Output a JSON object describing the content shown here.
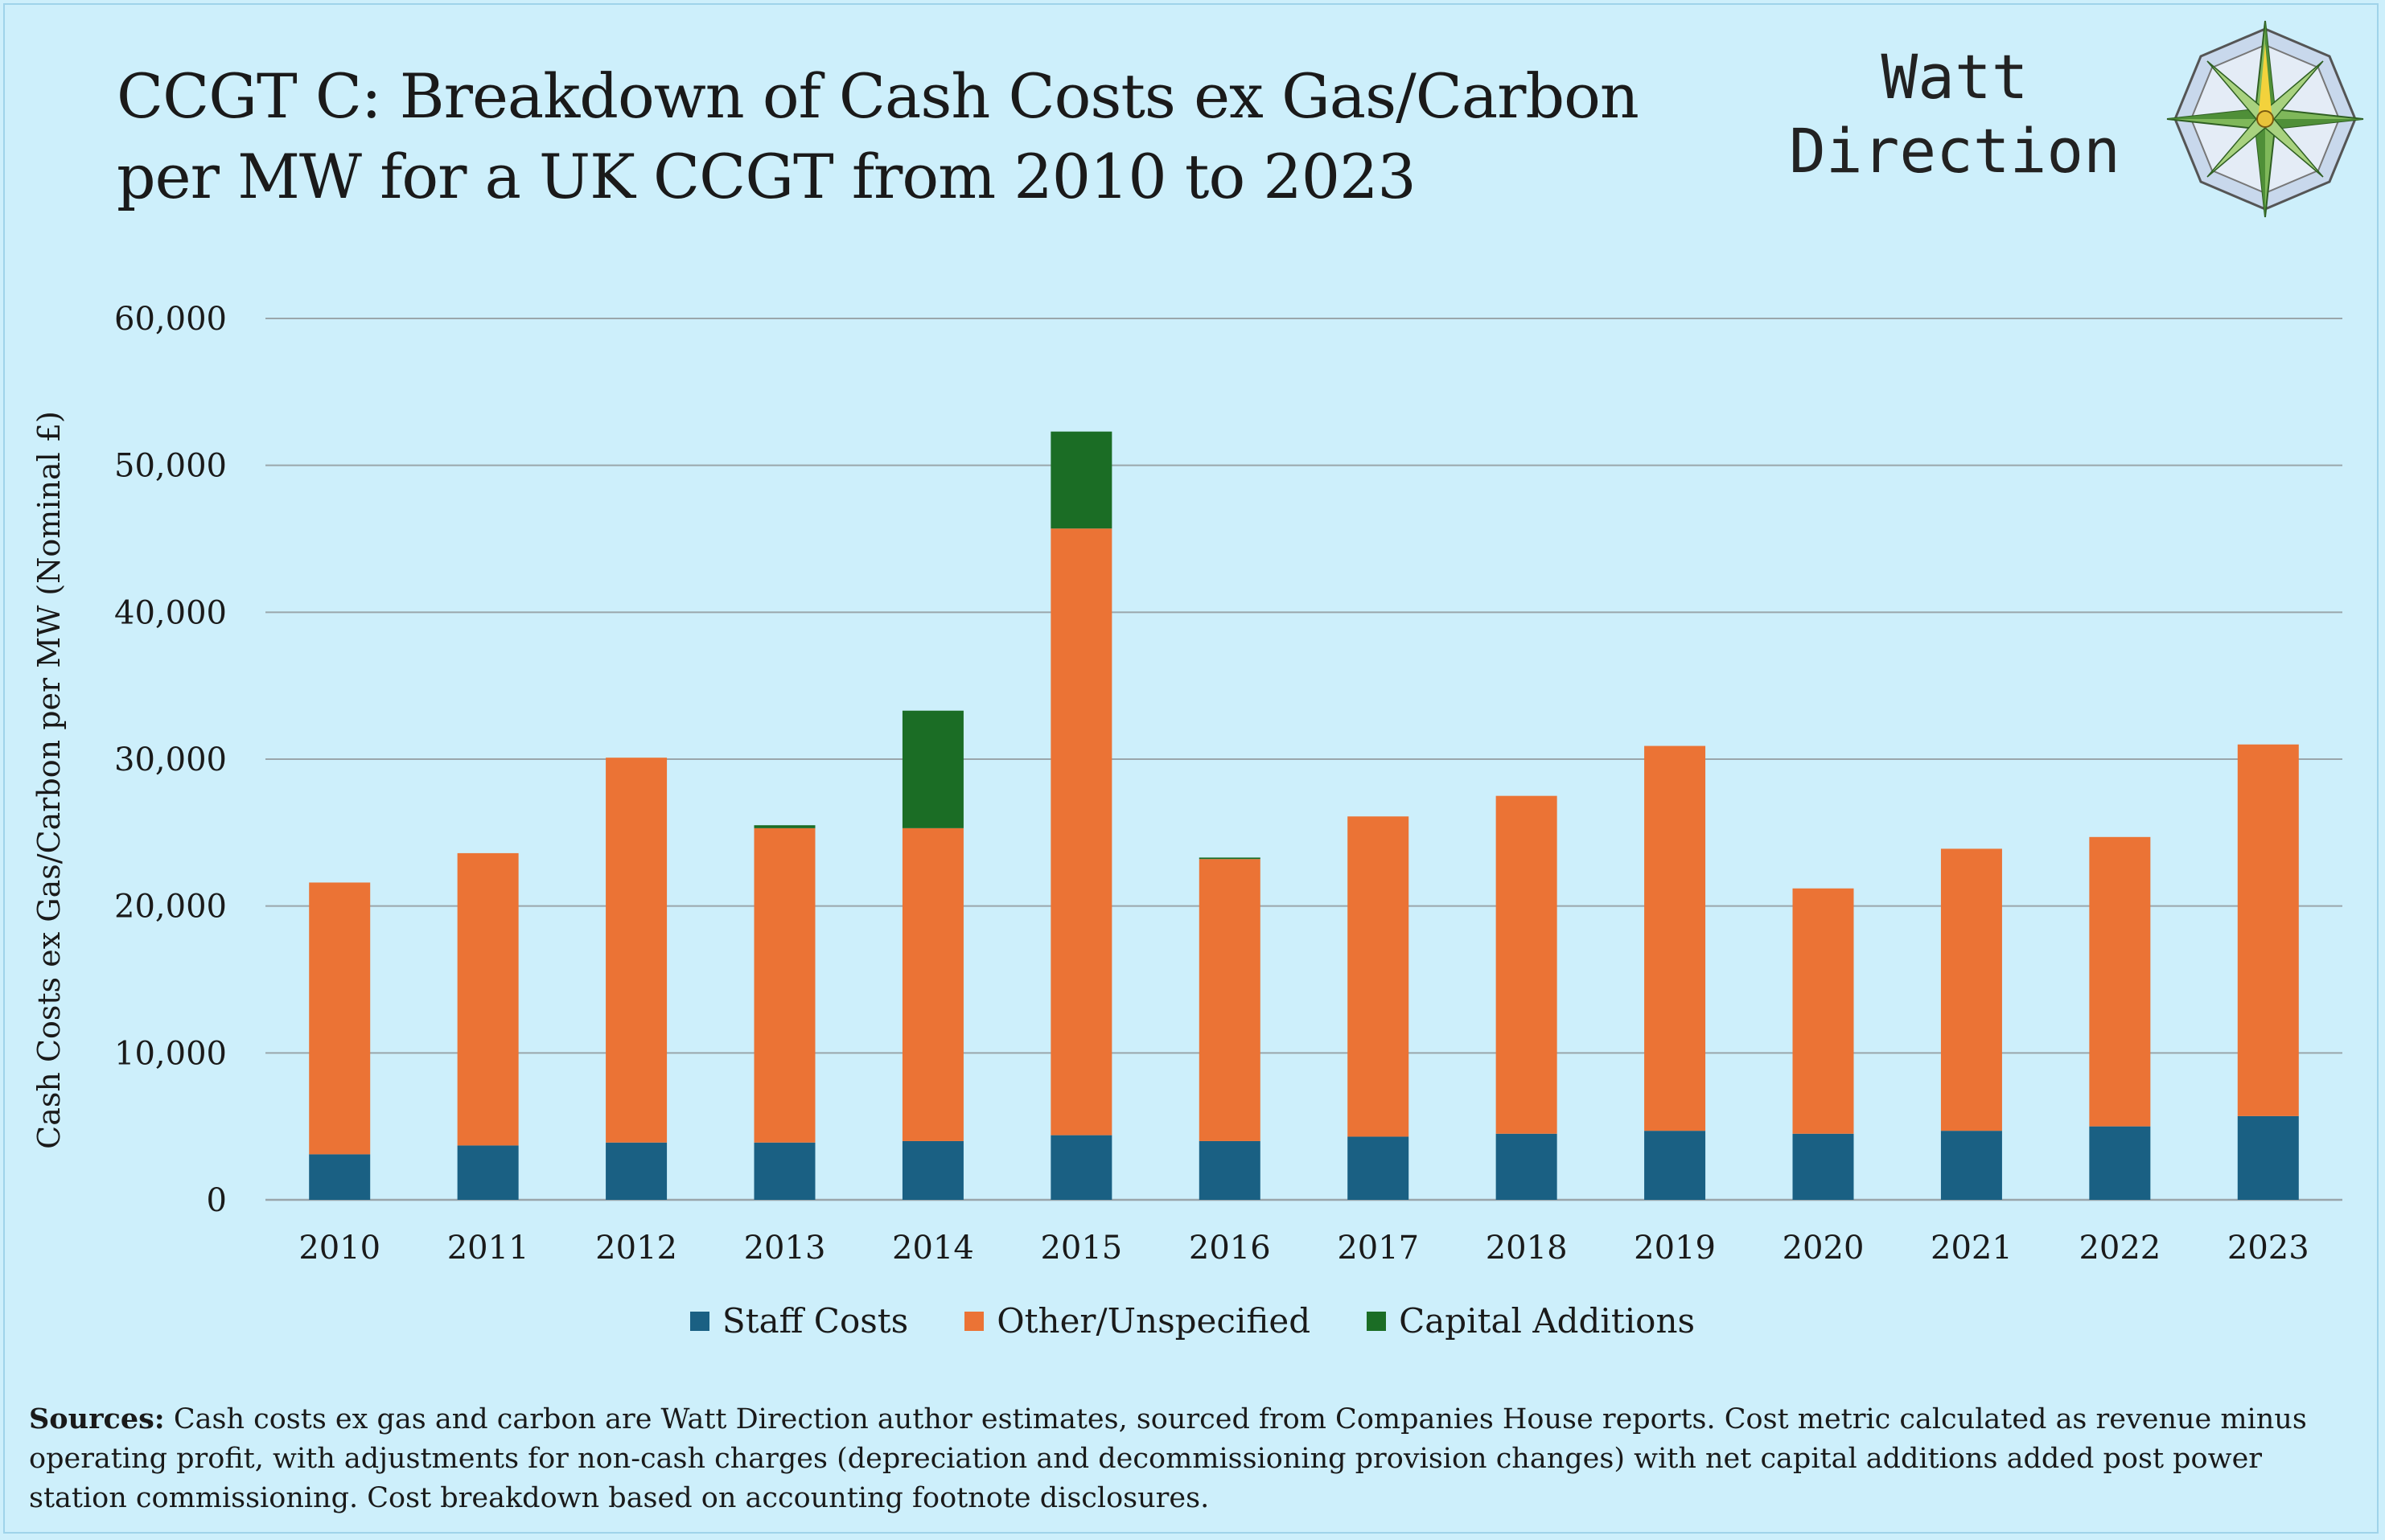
{
  "header": {
    "title_line1": "CCGT C: Breakdown of Cash Costs ex Gas/Carbon",
    "title_line2": "per MW for a UK CCGT from 2010 to 2023",
    "brand_line1": "Watt",
    "brand_line2": "Direction"
  },
  "colors": {
    "staff": "#1a6083",
    "other": "#eb7335",
    "capital": "#1b6d25",
    "grid": "#9aa6ab",
    "background": "#cdeffb"
  },
  "chart_data": {
    "type": "bar",
    "stacked": true,
    "ylabel": "Cash Costs ex Gas/Carbon per MW (Nominal £)",
    "ylim": [
      0,
      60000
    ],
    "yticks": [
      "0",
      "10,000",
      "20,000",
      "30,000",
      "40,000",
      "50,000",
      "60,000"
    ],
    "grid": true,
    "legend_position": "bottom",
    "categories": [
      "2010",
      "2011",
      "2012",
      "2013",
      "2014",
      "2015",
      "2016",
      "2017",
      "2018",
      "2019",
      "2020",
      "2021",
      "2022",
      "2023"
    ],
    "series": [
      {
        "name": "Staff Costs",
        "color": "#1a6083",
        "values": [
          3100,
          3700,
          3900,
          3900,
          4000,
          4400,
          4000,
          4300,
          4500,
          4700,
          4500,
          4700,
          5000,
          5700
        ]
      },
      {
        "name": "Other/Unspecified",
        "color": "#eb7335",
        "values": [
          18500,
          19900,
          26200,
          21400,
          21300,
          41300,
          19200,
          21800,
          23000,
          26200,
          16700,
          19200,
          19700,
          25300
        ]
      },
      {
        "name": "Capital Additions",
        "color": "#1b6d25",
        "values": [
          0,
          0,
          0,
          200,
          8000,
          6600,
          100,
          0,
          0,
          0,
          0,
          0,
          0,
          0
        ]
      }
    ]
  },
  "sources": {
    "label": "Sources:",
    "text": " Cash costs ex gas and carbon are Watt Direction author estimates, sourced from Companies House reports. Cost metric calculated as revenue minus operating profit, with adjustments for non-cash charges (depreciation and decommissioning provision changes) with net capital additions added post power station commissioning. Cost breakdown based on accounting footnote disclosures."
  }
}
